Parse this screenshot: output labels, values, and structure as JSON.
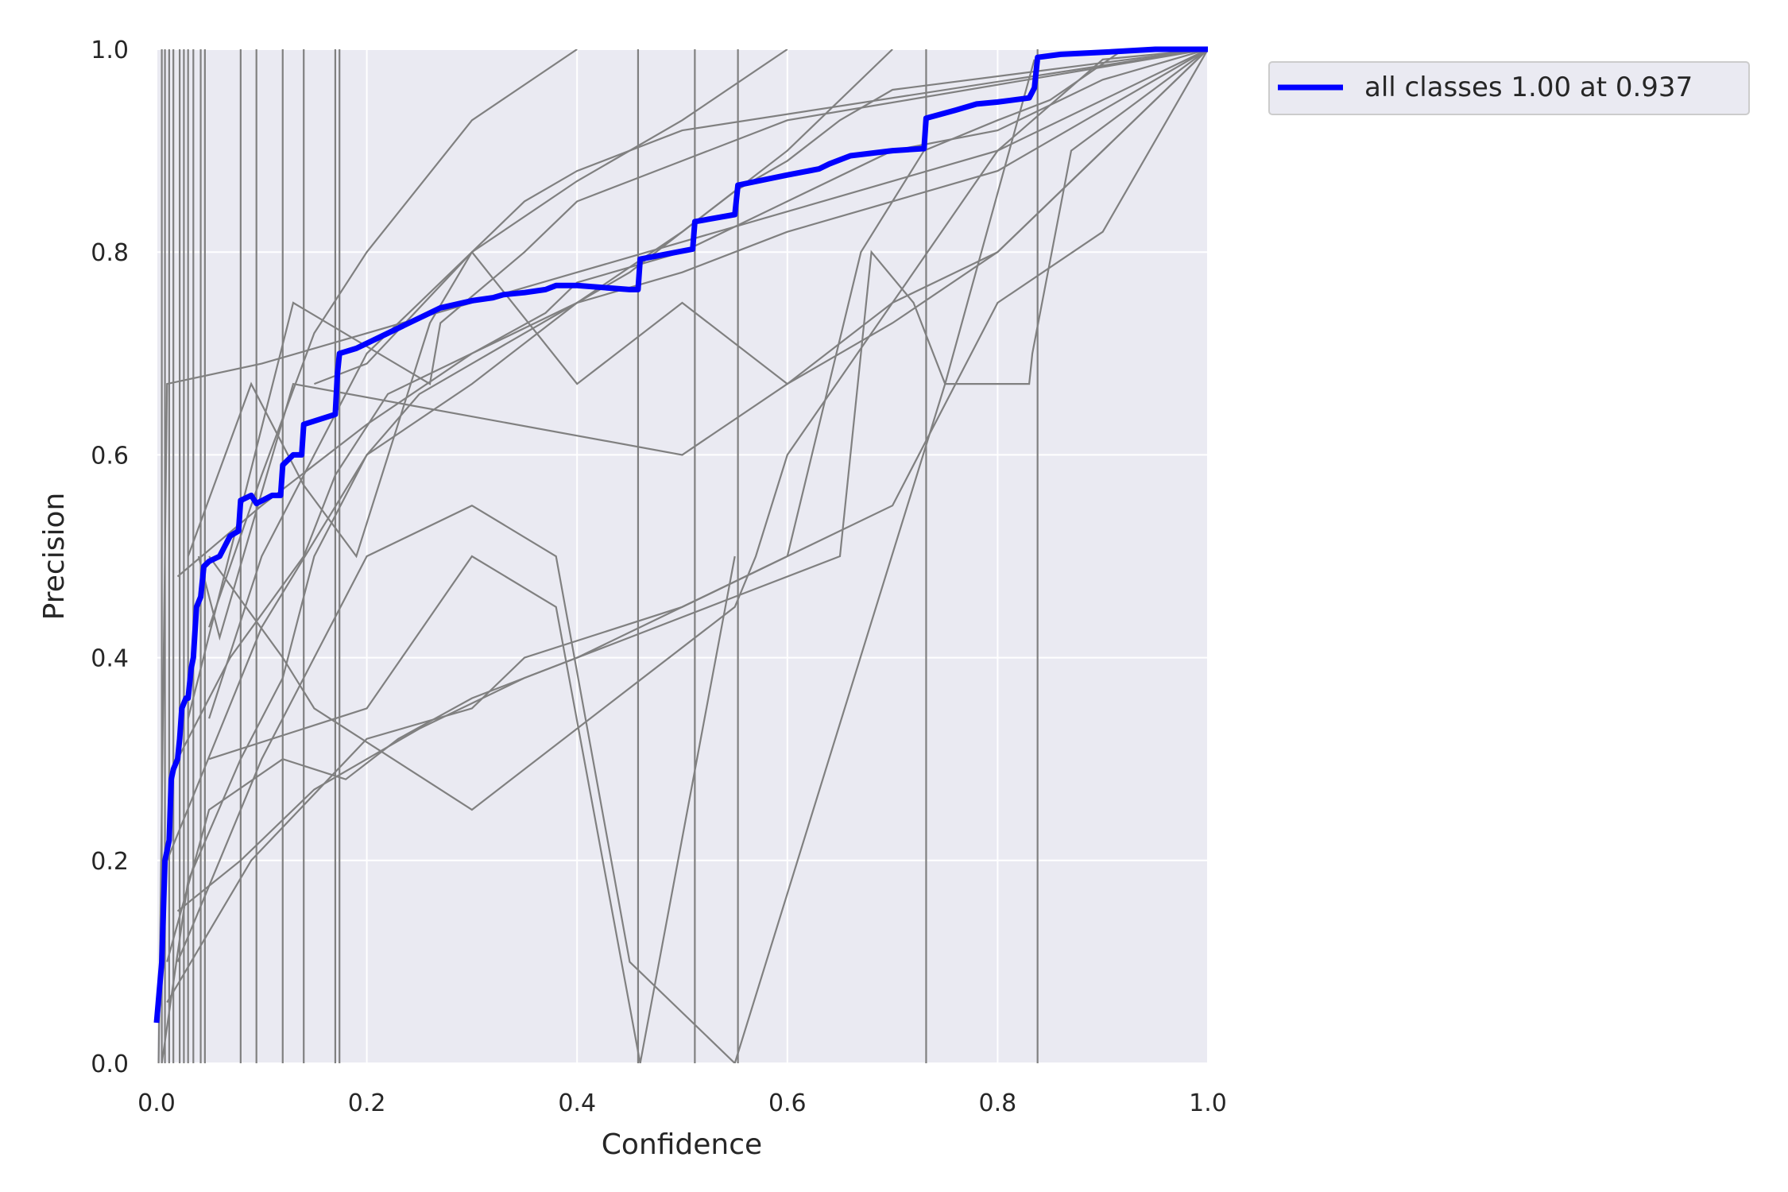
{
  "chart_data": {
    "type": "line",
    "xlabel": "Confidence",
    "ylabel": "Precision",
    "xlim": [
      0,
      1
    ],
    "ylim": [
      0,
      1
    ],
    "xticks": [
      "0.0",
      "0.2",
      "0.4",
      "0.6",
      "0.8",
      "1.0"
    ],
    "yticks": [
      "0.0",
      "0.2",
      "0.4",
      "0.6",
      "0.8",
      "1.0"
    ],
    "grid": true,
    "legend_position": "upper-right-outside",
    "colors": {
      "plot_bg": "#eaeaf2",
      "grid": "#ffffff",
      "class_line": "#808080",
      "all_line": "#0000ff"
    },
    "series": [
      {
        "name": "all classes 1.00 at 0.937",
        "color": "#0000ff",
        "x": [
          0.0,
          0.005,
          0.008,
          0.012,
          0.014,
          0.016,
          0.02,
          0.022,
          0.024,
          0.028,
          0.03,
          0.033,
          0.035,
          0.038,
          0.042,
          0.045,
          0.05,
          0.06,
          0.065,
          0.07,
          0.078,
          0.08,
          0.09,
          0.095,
          0.11,
          0.118,
          0.12,
          0.13,
          0.138,
          0.14,
          0.17,
          0.172,
          0.174,
          0.19,
          0.21,
          0.25,
          0.26,
          0.27,
          0.3,
          0.32,
          0.33,
          0.35,
          0.37,
          0.38,
          0.4,
          0.45,
          0.458,
          0.46,
          0.51,
          0.512,
          0.55,
          0.553,
          0.6,
          0.63,
          0.64,
          0.66,
          0.7,
          0.73,
          0.732,
          0.76,
          0.78,
          0.8,
          0.83,
          0.835,
          0.838,
          0.86,
          0.9,
          0.95,
          1.0
        ],
        "y": [
          0.04,
          0.1,
          0.2,
          0.22,
          0.28,
          0.29,
          0.3,
          0.32,
          0.35,
          0.36,
          0.36,
          0.39,
          0.4,
          0.45,
          0.46,
          0.49,
          0.495,
          0.5,
          0.51,
          0.52,
          0.525,
          0.555,
          0.56,
          0.552,
          0.56,
          0.56,
          0.59,
          0.6,
          0.6,
          0.63,
          0.64,
          0.68,
          0.7,
          0.705,
          0.715,
          0.735,
          0.74,
          0.745,
          0.752,
          0.755,
          0.758,
          0.76,
          0.763,
          0.767,
          0.767,
          0.763,
          0.763,
          0.793,
          0.803,
          0.83,
          0.837,
          0.866,
          0.876,
          0.882,
          0.887,
          0.895,
          0.9,
          0.902,
          0.932,
          0.94,
          0.946,
          0.948,
          0.952,
          0.962,
          0.992,
          0.995,
          0.997,
          1.0,
          1.0
        ]
      },
      {
        "name": "",
        "color": "#808080",
        "x": [
          0.002,
          0.01,
          0.1,
          0.2,
          0.3,
          0.4,
          0.5,
          0.6,
          0.7,
          0.8,
          0.9,
          1.0
        ],
        "y": [
          0.0,
          0.67,
          0.69,
          0.72,
          0.75,
          0.78,
          0.81,
          0.84,
          0.87,
          0.9,
          0.99,
          1.0
        ]
      },
      {
        "name": "",
        "color": "#808080",
        "x": [
          0.03,
          0.13,
          0.26,
          0.27,
          0.35,
          0.4,
          0.45,
          0.5,
          0.6,
          1.0
        ],
        "y": [
          0.34,
          0.75,
          0.67,
          0.73,
          0.8,
          0.85,
          0.87,
          0.89,
          0.93,
          1.0
        ]
      },
      {
        "name": "",
        "color": "#808080",
        "x": [
          0.02,
          0.1,
          0.2,
          0.3,
          0.4,
          0.5,
          0.6,
          0.7,
          0.8,
          0.9,
          1.0
        ],
        "y": [
          0.48,
          0.55,
          0.63,
          0.7,
          0.75,
          0.78,
          0.82,
          0.85,
          0.88,
          0.94,
          1.0
        ]
      },
      {
        "name": "",
        "color": "#808080",
        "x": [
          0.05,
          0.1,
          0.15,
          0.2,
          0.3,
          0.4,
          0.5,
          0.6
        ],
        "y": [
          0.34,
          0.5,
          0.6,
          0.7,
          0.8,
          0.87,
          0.93,
          1.0
        ]
      },
      {
        "name": "",
        "color": "#808080",
        "x": [
          0.01,
          0.1,
          0.2,
          0.25,
          0.3,
          0.35,
          0.4,
          0.45,
          0.5,
          0.55,
          0.6,
          0.65,
          0.7,
          1.0
        ],
        "y": [
          0.2,
          0.43,
          0.6,
          0.66,
          0.69,
          0.72,
          0.75,
          0.78,
          0.82,
          0.86,
          0.89,
          0.93,
          0.96,
          1.0
        ]
      },
      {
        "name": "",
        "color": "#808080",
        "x": [
          0.03,
          0.09,
          0.14,
          0.19,
          0.26,
          0.3,
          0.35,
          0.4,
          0.5,
          1.0
        ],
        "y": [
          0.5,
          0.67,
          0.57,
          0.5,
          0.73,
          0.8,
          0.85,
          0.88,
          0.92,
          1.0
        ]
      },
      {
        "name": "",
        "color": "#808080",
        "x": [
          0.05,
          0.1,
          0.15,
          0.2,
          0.3,
          0.4
        ],
        "y": [
          0.43,
          0.58,
          0.72,
          0.8,
          0.93,
          1.0
        ]
      },
      {
        "name": "",
        "color": "#808080",
        "x": [
          0.02,
          0.07,
          0.14,
          0.17,
          0.22,
          0.3,
          0.37,
          0.4,
          0.5,
          0.6,
          0.7,
          0.8,
          0.9,
          1.0
        ],
        "y": [
          0.3,
          0.4,
          0.5,
          0.58,
          0.66,
          0.7,
          0.74,
          0.77,
          0.8,
          0.85,
          0.9,
          0.92,
          0.97,
          1.0
        ]
      },
      {
        "name": "",
        "color": "#808080",
        "x": [
          0.005,
          0.03,
          0.08,
          0.12,
          0.15,
          0.2,
          0.3,
          0.4,
          0.5,
          0.6,
          0.7
        ],
        "y": [
          0.0,
          0.18,
          0.3,
          0.38,
          0.5,
          0.6,
          0.67,
          0.75,
          0.82,
          0.9,
          1.0
        ]
      },
      {
        "name": "",
        "color": "#808080",
        "x": [
          0.15,
          0.2,
          0.3,
          0.4,
          0.5,
          0.6,
          0.7,
          0.8,
          1.0
        ],
        "y": [
          0.67,
          0.69,
          0.8,
          0.67,
          0.75,
          0.67,
          0.75,
          0.8,
          1.0
        ]
      },
      {
        "name": "",
        "color": "#808080",
        "x": [
          0.04,
          0.06,
          0.13,
          0.5,
          0.6,
          0.7,
          0.8,
          0.9,
          1.0
        ],
        "y": [
          0.5,
          0.42,
          0.67,
          0.6,
          0.67,
          0.73,
          0.8,
          0.9,
          1.0
        ]
      },
      {
        "name": "",
        "color": "#808080",
        "x": [
          0.01,
          0.05,
          0.12,
          0.18,
          0.23,
          0.3,
          0.4,
          0.5,
          0.6,
          0.7,
          0.8,
          0.9,
          1.0
        ],
        "y": [
          0.1,
          0.25,
          0.3,
          0.28,
          0.32,
          0.36,
          0.4,
          0.45,
          0.5,
          0.55,
          0.75,
          0.82,
          1.0
        ]
      },
      {
        "name": "",
        "color": "#808080",
        "x": [
          0.02,
          0.08,
          0.15,
          0.25,
          0.35,
          0.45,
          0.55,
          0.65,
          0.68,
          0.72,
          0.75,
          0.83,
          0.833,
          0.87,
          1.0
        ],
        "y": [
          0.15,
          0.2,
          0.27,
          0.33,
          0.38,
          0.42,
          0.46,
          0.5,
          0.8,
          0.75,
          0.67,
          0.67,
          0.7,
          0.9,
          1.0
        ]
      },
      {
        "name": "",
        "color": "#808080",
        "x": [
          0.05,
          0.12,
          0.15,
          0.3,
          0.4,
          0.55,
          0.57,
          0.6,
          0.8,
          1.0
        ],
        "y": [
          0.5,
          0.4,
          0.35,
          0.25,
          0.33,
          0.45,
          0.5,
          0.6,
          0.9,
          1.0
        ]
      },
      {
        "name": "",
        "color": "#808080",
        "x": [
          0.01,
          0.09,
          0.2,
          0.3,
          0.35,
          0.5,
          0.6,
          0.67,
          0.73,
          0.8,
          0.85,
          0.92,
          1.0
        ],
        "y": [
          0.06,
          0.2,
          0.32,
          0.35,
          0.4,
          0.45,
          0.5,
          0.8,
          0.9,
          0.93,
          0.95,
          1.0,
          1.0
        ]
      },
      {
        "name": "",
        "color": "#808080",
        "x": [
          0.05,
          0.2,
          0.3,
          0.38,
          0.46,
          0.55
        ],
        "y": [
          0.3,
          0.35,
          0.5,
          0.45,
          0.0,
          0.5
        ]
      },
      {
        "name": "",
        "color": "#808080",
        "x": [
          0.02,
          0.06,
          0.1,
          0.15,
          0.2,
          0.3,
          0.38,
          0.45,
          0.55,
          0.75,
          0.835
        ],
        "y": [
          0.1,
          0.2,
          0.3,
          0.4,
          0.5,
          0.55,
          0.5,
          0.1,
          0.0,
          0.67,
          0.99
        ]
      }
    ],
    "vertical_lines_x": [
      0.005,
      0.008,
      0.012,
      0.016,
      0.022,
      0.026,
      0.03,
      0.035,
      0.042,
      0.046,
      0.08,
      0.095,
      0.12,
      0.14,
      0.17,
      0.174,
      0.458,
      0.512,
      0.553,
      0.732,
      0.838
    ]
  }
}
